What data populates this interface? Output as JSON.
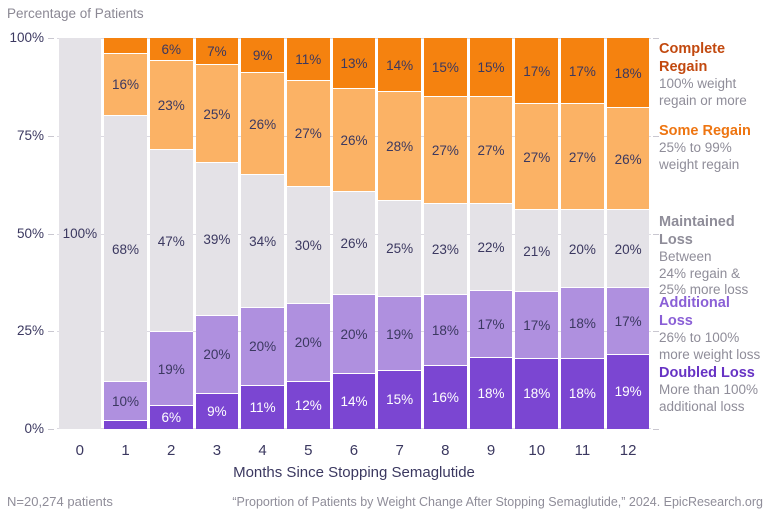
{
  "chart_data": {
    "type": "bar",
    "stacked": true,
    "title": "Percentage of Patients",
    "xlabel": "Months Since Stopping Semaglutide",
    "ylabel": "Percentage of Patients",
    "ylim": [
      0,
      100
    ],
    "grid": "ticks both sides, white gaps between bars",
    "legend_position": "right",
    "categories": [
      "0",
      "1",
      "2",
      "3",
      "4",
      "5",
      "6",
      "7",
      "8",
      "9",
      "10",
      "11",
      "12"
    ],
    "y_ticks": [
      {
        "value": 100,
        "label": "100%"
      },
      {
        "value": 75,
        "label": "75%"
      },
      {
        "value": 50,
        "label": "50%"
      },
      {
        "value": 25,
        "label": "25%"
      },
      {
        "value": 0,
        "label": "0%"
      }
    ],
    "series": [
      {
        "name": "Complete Regain",
        "color": "#f5820f",
        "label_color": "#3b3860",
        "values": [
          0,
          4,
          6,
          7,
          9,
          11,
          13,
          14,
          15,
          15,
          17,
          17,
          18
        ],
        "labels": [
          null,
          null,
          "6%",
          "7%",
          "9%",
          "11%",
          "13%",
          "14%",
          "15%",
          "15%",
          "17%",
          "17%",
          "18%"
        ]
      },
      {
        "name": "Some Regain",
        "color": "#fbb265",
        "label_color": "#3b3860",
        "values": [
          0,
          16,
          23,
          25,
          26,
          27,
          26,
          28,
          27,
          27,
          27,
          27,
          26
        ],
        "labels": [
          null,
          "16%",
          "23%",
          "25%",
          "26%",
          "27%",
          "26%",
          "28%",
          "27%",
          "27%",
          "27%",
          "27%",
          "26%"
        ]
      },
      {
        "name": "Maintained Loss",
        "color": "#e4e2e7",
        "label_color": "#3b3860",
        "values": [
          100,
          68,
          47,
          39,
          34,
          30,
          26,
          25,
          23,
          22,
          21,
          20,
          20
        ],
        "labels": [
          "100%",
          "68%",
          "47%",
          "39%",
          "34%",
          "30%",
          "26%",
          "25%",
          "23%",
          "22%",
          "21%",
          "20%",
          "20%"
        ]
      },
      {
        "name": "Additional Loss",
        "color": "#af90df",
        "label_color": "#3b3860",
        "values": [
          0,
          10,
          19,
          20,
          20,
          20,
          20,
          19,
          18,
          17,
          17,
          18,
          17
        ],
        "labels": [
          null,
          "10%",
          "19%",
          "20%",
          "20%",
          "20%",
          "20%",
          "19%",
          "18%",
          "17%",
          "17%",
          "18%",
          "17%"
        ]
      },
      {
        "name": "Doubled Loss",
        "color": "#7b46d2",
        "label_color": "#ffffff",
        "values": [
          0,
          2,
          6,
          9,
          11,
          12,
          14,
          15,
          16,
          18,
          18,
          18,
          19
        ],
        "labels": [
          null,
          null,
          "6%",
          "9%",
          "11%",
          "12%",
          "14%",
          "15%",
          "16%",
          "18%",
          "18%",
          "18%",
          "19%"
        ]
      }
    ],
    "legend": [
      {
        "title": "Complete Regain",
        "title_color": "#c2490f",
        "desc": [
          "100% weight",
          "regain or more"
        ],
        "top": 40
      },
      {
        "title": "Some Regain",
        "title_color": "#ee7511",
        "desc": [
          "25% to 99%",
          "weight regain"
        ],
        "top": 122
      },
      {
        "title": "Maintained Loss",
        "title_color": "#8f8d99",
        "desc": [
          "Between",
          "24% regain &",
          "25% more loss"
        ],
        "top": 213
      },
      {
        "title": "Additional Loss",
        "title_color": "#8a5fd6",
        "desc": [
          "26% to 100%",
          "more weight loss"
        ],
        "top": 294
      },
      {
        "title": "Doubled Loss",
        "title_color": "#6733c4",
        "desc": [
          "More than 100%",
          "additional loss"
        ],
        "top": 364
      }
    ]
  },
  "footer": {
    "n_label": "N=20,274 patients",
    "citation": "“Proportion of Patients by Weight Change After Stopping Semaglutide,” 2024. EpicResearch.org"
  }
}
